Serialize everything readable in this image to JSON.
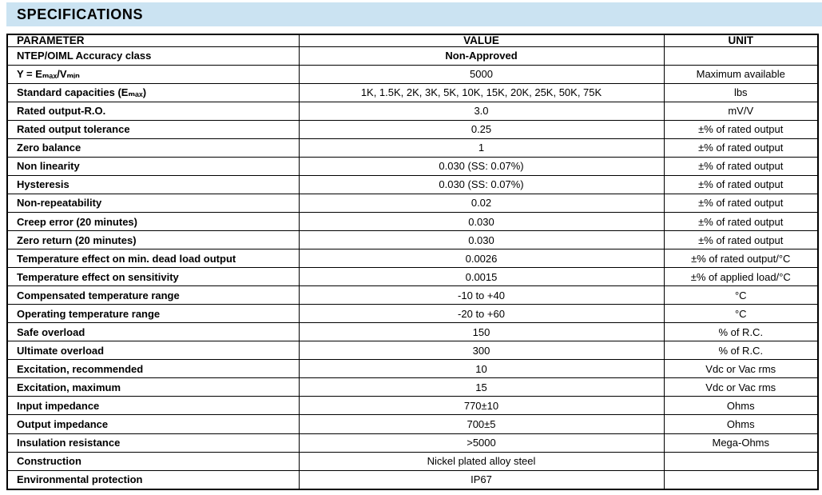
{
  "header": {
    "title": "SPECIFICATIONS"
  },
  "colors": {
    "header_band": "#cbe3f2",
    "border": "#000000",
    "text": "#000000"
  },
  "table": {
    "columns": [
      "PARAMETER",
      "VALUE",
      "UNIT"
    ],
    "rows": [
      {
        "parameter": "NTEP/OIML Accuracy class",
        "value": "Non-Approved",
        "unit": "",
        "value_bold": true
      },
      {
        "parameter": "Y = Eₘₐₓ/Vₘᵢₙ",
        "value": "5000",
        "unit": "Maximum available"
      },
      {
        "parameter": "Standard capacities (Eₘₐₓ)",
        "value": "1K, 1.5K, 2K, 3K, 5K, 10K, 15K, 20K, 25K, 50K, 75K",
        "unit": "lbs"
      },
      {
        "parameter": "Rated output-R.O.",
        "value": "3.0",
        "unit": "mV/V"
      },
      {
        "parameter": "Rated output tolerance",
        "value": "0.25",
        "unit": "±% of rated output"
      },
      {
        "parameter": "Zero balance",
        "value": "1",
        "unit": "±% of rated output"
      },
      {
        "parameter": "Non linearity",
        "value": "0.030 (SS: 0.07%)",
        "unit": "±% of rated output"
      },
      {
        "parameter": "Hysteresis",
        "value": "0.030 (SS: 0.07%)",
        "unit": "±% of rated output"
      },
      {
        "parameter": "Non-repeatability",
        "value": "0.02",
        "unit": "±% of rated output"
      },
      {
        "parameter": "Creep error (20 minutes)",
        "value": "0.030",
        "unit": "±% of rated output"
      },
      {
        "parameter": "Zero return (20 minutes)",
        "value": "0.030",
        "unit": "±% of rated output"
      },
      {
        "parameter": "Temperature effect on min. dead load output",
        "value": "0.0026",
        "unit": "±% of rated output/°C"
      },
      {
        "parameter": "Temperature effect on sensitivity",
        "value": "0.0015",
        "unit": "±% of applied load/°C"
      },
      {
        "parameter": "Compensated temperature range",
        "value": "-10 to +40",
        "unit": "°C"
      },
      {
        "parameter": "Operating temperature range",
        "value": "-20 to +60",
        "unit": "°C"
      },
      {
        "parameter": "Safe overload",
        "value": "150",
        "unit": "% of R.C."
      },
      {
        "parameter": "Ultimate overload",
        "value": "300",
        "unit": "% of R.C."
      },
      {
        "parameter": "Excitation, recommended",
        "value": "10",
        "unit": "Vdc or Vac rms"
      },
      {
        "parameter": "Excitation, maximum",
        "value": "15",
        "unit": "Vdc or Vac rms"
      },
      {
        "parameter": "Input impedance",
        "value": "770±10",
        "unit": "Ohms"
      },
      {
        "parameter": "Output impedance",
        "value": "700±5",
        "unit": "Ohms"
      },
      {
        "parameter": "Insulation resistance",
        "value": ">5000",
        "unit": "Mega-Ohms"
      },
      {
        "parameter": "Construction",
        "value": "Nickel plated alloy steel",
        "unit": ""
      },
      {
        "parameter": "Environmental protection",
        "value": "IP67",
        "unit": ""
      }
    ]
  }
}
